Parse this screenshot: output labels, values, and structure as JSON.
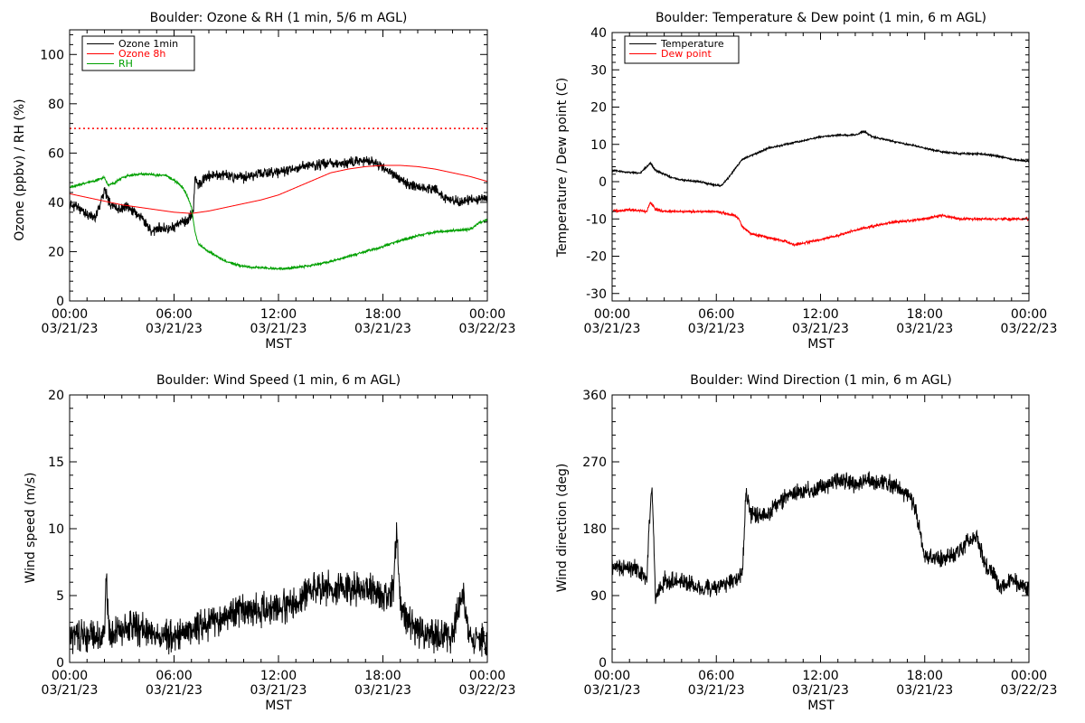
{
  "figure": {
    "background": "#ffffff",
    "axis_color": "#000000"
  },
  "chart_data": [
    {
      "id": "ozone_rh",
      "type": "line",
      "title": "Boulder: Ozone & RH (1 min, 5/6 m AGL)",
      "xlabel": "MST",
      "ylabel": "Ozone (ppbv) / RH (%)",
      "ylim": [
        0,
        110
      ],
      "yticks": [
        0,
        20,
        40,
        60,
        80,
        100
      ],
      "xlim": [
        0,
        24
      ],
      "xticks": [
        0,
        6,
        12,
        18,
        24
      ],
      "xtick_labels": [
        [
          "00:00",
          "03/21/23"
        ],
        [
          "06:00",
          "03/21/23"
        ],
        [
          "12:00",
          "03/21/23"
        ],
        [
          "18:00",
          "03/21/23"
        ],
        [
          "00:00",
          "03/22/23"
        ]
      ],
      "legend": {
        "placement": "top-left",
        "entries": [
          "Ozone 1min",
          "Ozone 8h",
          "RH"
        ]
      },
      "reference_line": {
        "y": 70,
        "color": "#ff0000",
        "style": "dotted"
      },
      "series": [
        {
          "name": "Ozone 1min",
          "color": "#000000",
          "noise": 2.5,
          "seed": 11,
          "points": [
            [
              0,
              39
            ],
            [
              0.5,
              38
            ],
            [
              1,
              35
            ],
            [
              1.5,
              34
            ],
            [
              2,
              45
            ],
            [
              2.3,
              40
            ],
            [
              2.8,
              37
            ],
            [
              3.3,
              38
            ],
            [
              3.8,
              36
            ],
            [
              4.2,
              33
            ],
            [
              4.7,
              28
            ],
            [
              5.2,
              30
            ],
            [
              5.7,
              29
            ],
            [
              6.2,
              31
            ],
            [
              6.8,
              33
            ],
            [
              7.1,
              36
            ],
            [
              7.2,
              50
            ],
            [
              7.4,
              47
            ],
            [
              8,
              51
            ],
            [
              9,
              51
            ],
            [
              10,
              50
            ],
            [
              11,
              52
            ],
            [
              12,
              52
            ],
            [
              13,
              54
            ],
            [
              14,
              55
            ],
            [
              15,
              56
            ],
            [
              16,
              56
            ],
            [
              17,
              57
            ],
            [
              17.5,
              56
            ],
            [
              18,
              54
            ],
            [
              18.7,
              51
            ],
            [
              19.5,
              47
            ],
            [
              20.3,
              46
            ],
            [
              21,
              45
            ],
            [
              21.5,
              42
            ],
            [
              22.5,
              40
            ],
            [
              23,
              41
            ],
            [
              24,
              42
            ]
          ]
        },
        {
          "name": "Ozone 8h",
          "color": "#ff0000",
          "noise": 0,
          "seed": 0,
          "points": [
            [
              0,
              43.5
            ],
            [
              1,
              42
            ],
            [
              2,
              40.5
            ],
            [
              3,
              39
            ],
            [
              4,
              38
            ],
            [
              5,
              37
            ],
            [
              6,
              36
            ],
            [
              7,
              35.5
            ],
            [
              8,
              36.5
            ],
            [
              9,
              38
            ],
            [
              10,
              39.5
            ],
            [
              11,
              41
            ],
            [
              12,
              43
            ],
            [
              13,
              46
            ],
            [
              14,
              49
            ],
            [
              15,
              52
            ],
            [
              16,
              53.5
            ],
            [
              17,
              54.5
            ],
            [
              18,
              55
            ],
            [
              19,
              55
            ],
            [
              20,
              54.5
            ],
            [
              21,
              53.5
            ],
            [
              22,
              52
            ],
            [
              23,
              50.5
            ],
            [
              24,
              48.5
            ]
          ]
        },
        {
          "name": "RH",
          "color": "#00a000",
          "noise": 0.6,
          "seed": 23,
          "points": [
            [
              0,
              46
            ],
            [
              0.5,
              47
            ],
            [
              1,
              48
            ],
            [
              1.5,
              49
            ],
            [
              2,
              50
            ],
            [
              2.2,
              47
            ],
            [
              2.6,
              48
            ],
            [
              3,
              50
            ],
            [
              3.5,
              51
            ],
            [
              4,
              51.5
            ],
            [
              4.5,
              51.5
            ],
            [
              5,
              51
            ],
            [
              5.5,
              51
            ],
            [
              6,
              49
            ],
            [
              6.5,
              46
            ],
            [
              6.8,
              42
            ],
            [
              7,
              38
            ],
            [
              7.2,
              28
            ],
            [
              7.4,
              23
            ],
            [
              8,
              20
            ],
            [
              9,
              16
            ],
            [
              10,
              14
            ],
            [
              11,
              13.5
            ],
            [
              12,
              13
            ],
            [
              13,
              13.5
            ],
            [
              14,
              14.5
            ],
            [
              15,
              16
            ],
            [
              16,
              18
            ],
            [
              17,
              20
            ],
            [
              18,
              22
            ],
            [
              19,
              24.5
            ],
            [
              20,
              26.5
            ],
            [
              21,
              28
            ],
            [
              22,
              28.5
            ],
            [
              23,
              29
            ],
            [
              23.5,
              31.5
            ],
            [
              24,
              33
            ]
          ]
        }
      ]
    },
    {
      "id": "temp_dew",
      "type": "line",
      "title": "Boulder: Temperature & Dew point (1 min, 6 m AGL)",
      "xlabel": "MST",
      "ylabel": "Temperature / Dew point (C)",
      "ylim": [
        -32,
        40
      ],
      "yticks": [
        -30,
        -20,
        -10,
        0,
        10,
        20,
        30,
        40
      ],
      "xlim": [
        0,
        24
      ],
      "xticks": [
        0,
        6,
        12,
        18,
        24
      ],
      "xtick_labels": [
        [
          "00:00",
          "03/21/23"
        ],
        [
          "06:00",
          "03/21/23"
        ],
        [
          "12:00",
          "03/21/23"
        ],
        [
          "18:00",
          "03/21/23"
        ],
        [
          "00:00",
          "03/22/23"
        ]
      ],
      "legend": {
        "placement": "top-left",
        "entries": [
          "Temperature",
          "Dew point"
        ]
      },
      "series": [
        {
          "name": "Temperature",
          "color": "#000000",
          "noise": 0.3,
          "seed": 5,
          "points": [
            [
              0,
              3
            ],
            [
              1,
              2.5
            ],
            [
              1.6,
              2.2
            ],
            [
              2,
              4
            ],
            [
              2.2,
              5
            ],
            [
              2.5,
              3
            ],
            [
              3,
              2
            ],
            [
              3.5,
              1
            ],
            [
              4,
              0.5
            ],
            [
              5,
              0
            ],
            [
              6,
              -1
            ],
            [
              6.3,
              -1
            ],
            [
              6.7,
              1
            ],
            [
              7,
              3
            ],
            [
              7.5,
              6
            ],
            [
              8,
              7
            ],
            [
              9,
              9
            ],
            [
              10,
              10
            ],
            [
              11,
              11
            ],
            [
              12,
              12
            ],
            [
              13,
              12.5
            ],
            [
              14,
              12.5
            ],
            [
              14.5,
              13.5
            ],
            [
              15,
              12
            ],
            [
              16,
              11
            ],
            [
              17,
              10
            ],
            [
              18,
              9
            ],
            [
              19,
              8
            ],
            [
              20,
              7.5
            ],
            [
              21,
              7.5
            ],
            [
              22,
              7
            ],
            [
              23,
              6
            ],
            [
              24,
              5.5
            ]
          ]
        },
        {
          "name": "Dew point",
          "color": "#ff0000",
          "noise": 0.4,
          "seed": 9,
          "points": [
            [
              0,
              -8
            ],
            [
              1,
              -7.5
            ],
            [
              2,
              -8
            ],
            [
              2.2,
              -5.5
            ],
            [
              2.5,
              -7.5
            ],
            [
              3,
              -8
            ],
            [
              4,
              -8
            ],
            [
              5,
              -8
            ],
            [
              6,
              -8
            ],
            [
              7,
              -9
            ],
            [
              7.3,
              -10
            ],
            [
              7.5,
              -12
            ],
            [
              8,
              -14
            ],
            [
              9,
              -15
            ],
            [
              10,
              -16
            ],
            [
              10.5,
              -17
            ],
            [
              11,
              -16.5
            ],
            [
              12,
              -15.5
            ],
            [
              13,
              -14.5
            ],
            [
              14,
              -13
            ],
            [
              15,
              -12
            ],
            [
              16,
              -11
            ],
            [
              17,
              -10.5
            ],
            [
              18,
              -10
            ],
            [
              19,
              -9
            ],
            [
              20,
              -10
            ],
            [
              21,
              -10
            ],
            [
              22,
              -10
            ],
            [
              23,
              -10
            ],
            [
              24,
              -10
            ]
          ]
        }
      ]
    },
    {
      "id": "wind_speed",
      "type": "line",
      "title": "Boulder: Wind Speed (1 min, 6 m AGL)",
      "xlabel": "MST",
      "ylabel": "Wind speed (m/s)",
      "ylim": [
        0,
        20
      ],
      "yticks": [
        0,
        5,
        10,
        15,
        20
      ],
      "xlim": [
        0,
        24
      ],
      "xticks": [
        0,
        6,
        12,
        18,
        24
      ],
      "xtick_labels": [
        [
          "00:00",
          "03/21/23"
        ],
        [
          "06:00",
          "03/21/23"
        ],
        [
          "12:00",
          "03/21/23"
        ],
        [
          "18:00",
          "03/21/23"
        ],
        [
          "00:00",
          "03/22/23"
        ]
      ],
      "series": [
        {
          "name": "",
          "color": "#000000",
          "noise": 1.5,
          "seed": 31,
          "clip_min": 0,
          "points": [
            [
              0,
              2
            ],
            [
              1,
              2
            ],
            [
              2,
              2
            ],
            [
              2.1,
              6.5
            ],
            [
              2.3,
              2
            ],
            [
              3,
              2.5
            ],
            [
              4,
              2.5
            ],
            [
              5,
              2
            ],
            [
              6,
              2
            ],
            [
              7,
              2.5
            ],
            [
              8,
              3
            ],
            [
              9,
              3.5
            ],
            [
              10,
              4
            ],
            [
              11,
              4
            ],
            [
              12,
              4
            ],
            [
              13,
              4.5
            ],
            [
              14,
              5.5
            ],
            [
              15,
              5.5
            ],
            [
              16,
              5.5
            ],
            [
              17,
              5.5
            ],
            [
              18,
              5
            ],
            [
              18.6,
              5.5
            ],
            [
              18.8,
              10
            ],
            [
              19,
              4
            ],
            [
              19.5,
              3
            ],
            [
              20,
              2.5
            ],
            [
              21,
              2
            ],
            [
              22,
              2
            ],
            [
              22.3,
              4
            ],
            [
              22.6,
              5
            ],
            [
              23,
              2
            ],
            [
              24,
              1.5
            ]
          ]
        }
      ]
    },
    {
      "id": "wind_dir",
      "type": "line",
      "title": "Boulder: Wind Direction (1 min, 6 m AGL)",
      "xlabel": "MST",
      "ylabel": "Wind direction (deg)",
      "ylim": [
        0,
        360
      ],
      "yticks": [
        0,
        90,
        180,
        270,
        360
      ],
      "xlim": [
        0,
        24
      ],
      "xticks": [
        0,
        6,
        12,
        18,
        24
      ],
      "xtick_labels": [
        [
          "00:00",
          "03/21/23"
        ],
        [
          "06:00",
          "03/21/23"
        ],
        [
          "12:00",
          "03/21/23"
        ],
        [
          "18:00",
          "03/21/23"
        ],
        [
          "00:00",
          "03/22/23"
        ]
      ],
      "series": [
        {
          "name": "",
          "color": "#000000",
          "noise": 14,
          "seed": 47,
          "points": [
            [
              0,
              128
            ],
            [
              1,
              128
            ],
            [
              1.5,
              125
            ],
            [
              2,
              110
            ],
            [
              2.1,
              170
            ],
            [
              2.3,
              240
            ],
            [
              2.5,
              90
            ],
            [
              3,
              110
            ],
            [
              4,
              110
            ],
            [
              5,
              100
            ],
            [
              6,
              100
            ],
            [
              7,
              110
            ],
            [
              7.5,
              120
            ],
            [
              7.7,
              230
            ],
            [
              8,
              200
            ],
            [
              9,
              200
            ],
            [
              10,
              225
            ],
            [
              11,
              230
            ],
            [
              12,
              235
            ],
            [
              13,
              245
            ],
            [
              14,
              240
            ],
            [
              15,
              245
            ],
            [
              16,
              240
            ],
            [
              17,
              225
            ],
            [
              17.5,
              205
            ],
            [
              18,
              140
            ],
            [
              19,
              140
            ],
            [
              20,
              150
            ],
            [
              20.5,
              165
            ],
            [
              21,
              170
            ],
            [
              21.5,
              130
            ],
            [
              22,
              120
            ],
            [
              22.3,
              100
            ],
            [
              23,
              110
            ],
            [
              24,
              100
            ]
          ]
        }
      ]
    }
  ]
}
